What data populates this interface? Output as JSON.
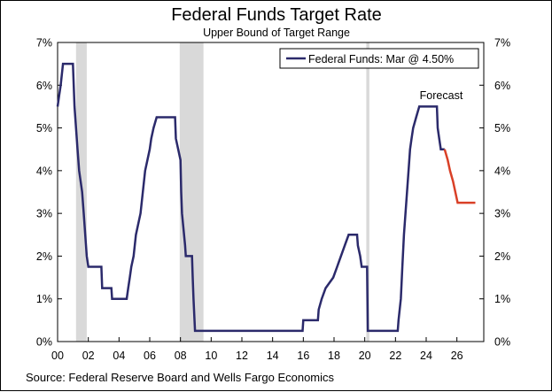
{
  "chart_data": {
    "type": "line",
    "title": "Federal Funds Target Rate",
    "subtitle": "Upper Bound of Target Range",
    "source": "Source: Federal Reserve Board and Wells Fargo Economics",
    "annotation": "Forecast",
    "xlim": [
      2000,
      2027.75
    ],
    "ylim": [
      0,
      7
    ],
    "x_ticks": [
      2000,
      2002,
      2004,
      2006,
      2008,
      2010,
      2012,
      2014,
      2016,
      2018,
      2020,
      2022,
      2024,
      2026
    ],
    "x_tick_labels": [
      "00",
      "02",
      "04",
      "06",
      "08",
      "10",
      "12",
      "14",
      "16",
      "18",
      "20",
      "22",
      "24",
      "26"
    ],
    "y_ticks": [
      0,
      1,
      2,
      3,
      4,
      5,
      6,
      7
    ],
    "y_tick_labels": [
      "0%",
      "1%",
      "2%",
      "3%",
      "4%",
      "5%",
      "6%",
      "7%"
    ],
    "legend": {
      "label": "Federal Funds: Mar @ 4.50%",
      "placement": "top-right"
    },
    "recessions": [
      {
        "start": 2001.2,
        "end": 2001.9
      },
      {
        "start": 2007.95,
        "end": 2009.5
      },
      {
        "start": 2020.1,
        "end": 2020.3
      }
    ],
    "colors": {
      "actual": "#2b2a6b",
      "forecast": "#d94027",
      "recession": "#d9d9d9",
      "axis": "#000000"
    },
    "series": [
      {
        "name": "Federal Funds",
        "color": "#2b2a6b",
        "points": [
          [
            2000.0,
            5.5
          ],
          [
            2000.1,
            5.75
          ],
          [
            2000.2,
            6.0
          ],
          [
            2000.35,
            6.5
          ],
          [
            2001.0,
            6.5
          ],
          [
            2001.05,
            6.0
          ],
          [
            2001.1,
            5.5
          ],
          [
            2001.2,
            5.0
          ],
          [
            2001.3,
            4.5
          ],
          [
            2001.4,
            4.0
          ],
          [
            2001.5,
            3.75
          ],
          [
            2001.6,
            3.5
          ],
          [
            2001.7,
            3.0
          ],
          [
            2001.8,
            2.5
          ],
          [
            2001.9,
            2.0
          ],
          [
            2002.0,
            1.75
          ],
          [
            2002.85,
            1.75
          ],
          [
            2002.9,
            1.25
          ],
          [
            2003.5,
            1.25
          ],
          [
            2003.55,
            1.0
          ],
          [
            2004.5,
            1.0
          ],
          [
            2004.6,
            1.25
          ],
          [
            2004.7,
            1.5
          ],
          [
            2004.8,
            1.75
          ],
          [
            2004.95,
            2.0
          ],
          [
            2005.1,
            2.5
          ],
          [
            2005.25,
            2.75
          ],
          [
            2005.4,
            3.0
          ],
          [
            2005.55,
            3.5
          ],
          [
            2005.7,
            4.0
          ],
          [
            2005.85,
            4.25
          ],
          [
            2006.0,
            4.5
          ],
          [
            2006.1,
            4.75
          ],
          [
            2006.25,
            5.0
          ],
          [
            2006.45,
            5.25
          ],
          [
            2007.65,
            5.25
          ],
          [
            2007.7,
            4.75
          ],
          [
            2007.85,
            4.5
          ],
          [
            2008.0,
            4.25
          ],
          [
            2008.05,
            3.5
          ],
          [
            2008.1,
            3.0
          ],
          [
            2008.3,
            2.25
          ],
          [
            2008.35,
            2.0
          ],
          [
            2008.75,
            2.0
          ],
          [
            2008.8,
            1.5
          ],
          [
            2008.85,
            1.0
          ],
          [
            2008.95,
            0.25
          ],
          [
            2015.95,
            0.25
          ],
          [
            2016.0,
            0.5
          ],
          [
            2016.95,
            0.5
          ],
          [
            2017.0,
            0.75
          ],
          [
            2017.2,
            1.0
          ],
          [
            2017.45,
            1.25
          ],
          [
            2017.95,
            1.5
          ],
          [
            2018.2,
            1.75
          ],
          [
            2018.45,
            2.0
          ],
          [
            2018.7,
            2.25
          ],
          [
            2018.95,
            2.5
          ],
          [
            2019.5,
            2.5
          ],
          [
            2019.55,
            2.25
          ],
          [
            2019.7,
            2.0
          ],
          [
            2019.8,
            1.75
          ],
          [
            2020.15,
            1.75
          ],
          [
            2020.2,
            0.25
          ],
          [
            2022.15,
            0.25
          ],
          [
            2022.2,
            0.5
          ],
          [
            2022.35,
            1.0
          ],
          [
            2022.45,
            1.75
          ],
          [
            2022.55,
            2.5
          ],
          [
            2022.7,
            3.25
          ],
          [
            2022.85,
            4.0
          ],
          [
            2022.95,
            4.5
          ],
          [
            2023.05,
            4.75
          ],
          [
            2023.15,
            5.0
          ],
          [
            2023.35,
            5.25
          ],
          [
            2023.55,
            5.5
          ],
          [
            2024.7,
            5.5
          ],
          [
            2024.75,
            5.0
          ],
          [
            2024.85,
            4.75
          ],
          [
            2024.95,
            4.5
          ],
          [
            2025.2,
            4.5
          ]
        ]
      },
      {
        "name": "Forecast",
        "color": "#d94027",
        "points": [
          [
            2025.2,
            4.5
          ],
          [
            2025.4,
            4.25
          ],
          [
            2025.55,
            4.0
          ],
          [
            2025.75,
            3.75
          ],
          [
            2025.9,
            3.5
          ],
          [
            2026.05,
            3.25
          ],
          [
            2027.2,
            3.25
          ]
        ]
      }
    ]
  }
}
